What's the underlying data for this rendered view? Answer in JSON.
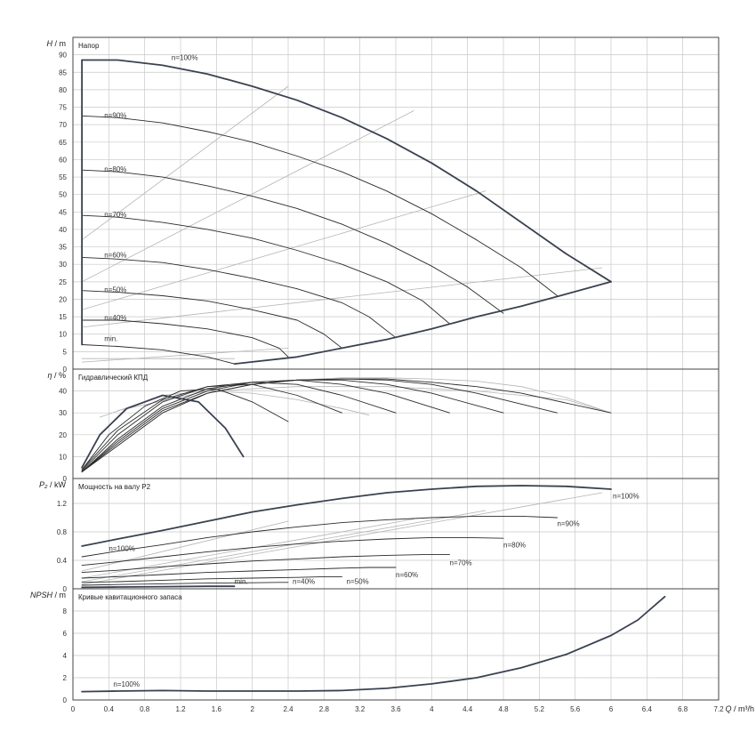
{
  "colors": {
    "dark": "#3a4150",
    "mid": "#2b2b2b",
    "light": "#b4b4b4",
    "grid": "#c8c8c8"
  },
  "chart_data": [
    {
      "type": "line",
      "panel": "head",
      "title": "Напор",
      "ylabel_var": "H",
      "ylabel_unit": "m",
      "ylim": [
        0,
        95
      ],
      "yticks": [
        0,
        5,
        10,
        15,
        20,
        25,
        30,
        35,
        40,
        45,
        50,
        55,
        60,
        65,
        70,
        75,
        80,
        85,
        90
      ],
      "curve_labels": [
        {
          "text": "n=100%",
          "at": [
            1.1,
            88.5
          ]
        },
        {
          "text": "n=90%",
          "at": [
            0.35,
            72
          ]
        },
        {
          "text": "n=80%",
          "at": [
            0.35,
            56.5
          ]
        },
        {
          "text": "n=70%",
          "at": [
            0.35,
            43.5
          ]
        },
        {
          "text": "n=60%",
          "at": [
            0.35,
            32
          ]
        },
        {
          "text": "n=50%",
          "at": [
            0.35,
            22
          ]
        },
        {
          "text": "n=40%",
          "at": [
            0.35,
            14
          ]
        },
        {
          "text": "min.",
          "at": [
            0.35,
            8
          ]
        }
      ],
      "series": [
        {
          "name": "n=100%",
          "style": "dark",
          "x": [
            0.1,
            0.5,
            1.0,
            1.5,
            2.0,
            2.5,
            3.0,
            3.5,
            4.0,
            4.5,
            5.0,
            5.5,
            6.0
          ],
          "y": [
            88.5,
            88.5,
            87,
            84.5,
            81,
            77,
            72,
            66,
            59,
            51,
            42,
            33,
            25
          ]
        },
        {
          "name": "n=90%",
          "style": "mid",
          "x": [
            0.1,
            0.5,
            1.0,
            1.5,
            2.0,
            2.5,
            3.0,
            3.5,
            4.0,
            4.5,
            5.0,
            5.4
          ],
          "y": [
            72.5,
            72,
            70.5,
            68,
            65,
            61,
            56.5,
            51,
            44.5,
            37,
            29,
            21
          ]
        },
        {
          "name": "n=80%",
          "style": "mid",
          "x": [
            0.1,
            0.5,
            1.0,
            1.5,
            2.0,
            2.5,
            3.0,
            3.5,
            4.0,
            4.4,
            4.8
          ],
          "y": [
            57,
            56.5,
            55,
            52.5,
            49.5,
            46,
            41.5,
            36,
            29.5,
            23.5,
            16
          ]
        },
        {
          "name": "n=70%",
          "style": "mid",
          "x": [
            0.1,
            0.5,
            1.0,
            1.5,
            2.0,
            2.5,
            3.0,
            3.5,
            3.9,
            4.2
          ],
          "y": [
            44,
            43.5,
            42,
            40,
            37.5,
            34,
            30,
            25,
            19.5,
            13
          ]
        },
        {
          "name": "n=60%",
          "style": "mid",
          "x": [
            0.1,
            0.5,
            1.0,
            1.5,
            2.0,
            2.5,
            3.0,
            3.3,
            3.6
          ],
          "y": [
            32,
            31.5,
            30.5,
            28.5,
            26,
            23,
            19,
            15,
            9
          ]
        },
        {
          "name": "n=50%",
          "style": "mid",
          "x": [
            0.1,
            0.5,
            1.0,
            1.5,
            2.0,
            2.5,
            2.8,
            3.0
          ],
          "y": [
            22.5,
            22,
            21,
            19.5,
            17,
            14,
            10,
            6
          ]
        },
        {
          "name": "n=40%",
          "style": "mid",
          "x": [
            0.1,
            0.5,
            1.0,
            1.5,
            2.0,
            2.3,
            2.4
          ],
          "y": [
            14,
            14,
            13,
            11.5,
            9,
            6,
            3.5
          ]
        },
        {
          "name": "min.",
          "style": "mid",
          "x": [
            0.1,
            0.5,
            1.0,
            1.5,
            1.8
          ],
          "y": [
            7,
            6.5,
            5.5,
            3.5,
            1.5
          ]
        },
        {
          "name": "",
          "style": "dark",
          "x": [
            0.1,
            0.1
          ],
          "y": [
            7,
            88.5
          ]
        },
        {
          "name": "",
          "style": "dark",
          "x": [
            1.8,
            2.5,
            3.0,
            3.5,
            4.0,
            4.5,
            5.0,
            5.5,
            6.0
          ],
          "y": [
            1.5,
            3.5,
            6,
            8.5,
            11.5,
            15,
            18,
            21.5,
            25
          ]
        },
        {
          "name": "",
          "style": "light",
          "x": [
            0.1,
            2.4
          ],
          "y": [
            37,
            81
          ]
        },
        {
          "name": "",
          "style": "light",
          "x": [
            0.1,
            3.8
          ],
          "y": [
            25,
            74
          ]
        },
        {
          "name": "",
          "style": "light",
          "x": [
            0.1,
            4.6
          ],
          "y": [
            17,
            51
          ]
        },
        {
          "name": "",
          "style": "light",
          "x": [
            0.1,
            5.9
          ],
          "y": [
            12,
            29
          ]
        },
        {
          "name": "",
          "style": "light",
          "x": [
            0.1,
            1.8
          ],
          "y": [
            3,
            3
          ]
        },
        {
          "name": "",
          "style": "light",
          "x": [
            0.1,
            2.4
          ],
          "y": [
            2,
            6
          ]
        }
      ]
    },
    {
      "type": "line",
      "panel": "efficiency",
      "title": "Гидравлический КПД",
      "ylabel_var": "η",
      "ylabel_unit": "%",
      "ylim": [
        0,
        50
      ],
      "yticks": [
        0,
        10,
        20,
        30,
        40
      ],
      "series": [
        {
          "name": "min.",
          "style": "dark",
          "x": [
            0.1,
            0.3,
            0.6,
            1.0,
            1.4,
            1.7,
            1.9
          ],
          "y": [
            5,
            20,
            32,
            38,
            35,
            23,
            10
          ]
        },
        {
          "name": "n=40%",
          "style": "mid",
          "x": [
            0.1,
            0.4,
            0.8,
            1.2,
            1.6,
            2.0,
            2.4
          ],
          "y": [
            4,
            20,
            33,
            40,
            41,
            35,
            26
          ]
        },
        {
          "name": "n=50%",
          "style": "mid",
          "x": [
            0.1,
            0.5,
            1.0,
            1.5,
            2.0,
            2.5,
            3.0
          ],
          "y": [
            4,
            22,
            36,
            42,
            43,
            38,
            30
          ]
        },
        {
          "name": "n=60%",
          "style": "mid",
          "x": [
            0.1,
            0.5,
            1.0,
            1.5,
            2.0,
            2.5,
            3.0,
            3.6
          ],
          "y": [
            3.5,
            20,
            35,
            42,
            44,
            43,
            38,
            30
          ]
        },
        {
          "name": "n=70%",
          "style": "mid",
          "x": [
            0.1,
            0.5,
            1.0,
            1.5,
            2.0,
            2.5,
            3.0,
            3.5,
            4.2
          ],
          "y": [
            3,
            18,
            33,
            41,
            44,
            45,
            43,
            39,
            30
          ]
        },
        {
          "name": "n=80%",
          "style": "mid",
          "x": [
            0.1,
            0.5,
            1.0,
            1.5,
            2.0,
            2.5,
            3.0,
            3.5,
            4.0,
            4.8
          ],
          "y": [
            3,
            17,
            32,
            40,
            44,
            45,
            45,
            43,
            39,
            30
          ]
        },
        {
          "name": "n=90%",
          "style": "mid",
          "x": [
            0.1,
            0.5,
            1.0,
            1.5,
            2.0,
            2.5,
            3.0,
            3.5,
            4.0,
            4.5,
            5.4
          ],
          "y": [
            3,
            16,
            31,
            39,
            43,
            45,
            45.5,
            45,
            43,
            39,
            30
          ]
        },
        {
          "name": "n=100%",
          "style": "mid",
          "x": [
            0.1,
            0.5,
            1.0,
            1.5,
            2.0,
            2.5,
            3.0,
            3.5,
            4.0,
            4.5,
            5.0,
            6.0
          ],
          "y": [
            3,
            15,
            30,
            39,
            43,
            45,
            45.5,
            45.5,
            44,
            42,
            39,
            30
          ]
        },
        {
          "name": "",
          "style": "light",
          "x": [
            0.1,
            0.5,
            1.0,
            1.5,
            2.0,
            2.5,
            3.0,
            3.5,
            4.0,
            4.5,
            5.0,
            5.5,
            6.0
          ],
          "y": [
            3,
            15,
            30,
            39,
            43,
            45,
            46,
            46,
            45.5,
            44.5,
            42,
            37,
            30
          ]
        },
        {
          "name": "",
          "style": "light",
          "x": [
            0.3,
            1.0,
            1.5,
            2.0,
            2.5,
            3.0,
            3.3
          ],
          "y": [
            28,
            38,
            40,
            39,
            36,
            32,
            29
          ]
        },
        {
          "name": "",
          "style": "light",
          "x": [
            0.5,
            1.5,
            2.5,
            3.5,
            4.5,
            5.5,
            6.0
          ],
          "y": [
            31,
            40,
            42,
            42,
            40,
            36,
            30
          ]
        }
      ]
    },
    {
      "type": "line",
      "panel": "power",
      "title": "Мощность на валу P2",
      "ylabel_var": "P₂",
      "ylabel_unit": "kW",
      "ylim": [
        0,
        1.55
      ],
      "yticks": [
        0,
        0.4,
        0.8,
        1.2
      ],
      "ytick_labels": [
        "0",
        "0.4",
        "0.8",
        "1.2"
      ],
      "curve_labels": [
        {
          "text": "n=100%",
          "at": [
            6.02,
            1.27
          ]
        },
        {
          "text": "n=90%",
          "at": [
            5.4,
            0.88
          ]
        },
        {
          "text": "n=80%",
          "at": [
            4.8,
            0.58
          ]
        },
        {
          "text": "n=70%",
          "at": [
            4.2,
            0.33
          ]
        },
        {
          "text": "n=60%",
          "at": [
            3.6,
            0.16
          ]
        },
        {
          "text": "n=50%",
          "at": [
            3.05,
            0.07
          ]
        },
        {
          "text": "n=40%",
          "at": [
            2.45,
            0.07
          ]
        },
        {
          "text": "min.",
          "at": [
            1.8,
            0.07
          ]
        },
        {
          "text": "n=100%",
          "at": [
            0.4,
            0.53
          ]
        }
      ],
      "series": [
        {
          "name": "n=100%",
          "style": "dark",
          "x": [
            0.1,
            0.5,
            1.0,
            1.5,
            2.0,
            2.5,
            3.0,
            3.5,
            4.0,
            4.5,
            5.0,
            5.5,
            6.0
          ],
          "y": [
            0.6,
            0.7,
            0.82,
            0.95,
            1.08,
            1.18,
            1.27,
            1.35,
            1.4,
            1.44,
            1.45,
            1.44,
            1.4
          ]
        },
        {
          "name": "n=90%",
          "style": "mid",
          "x": [
            0.1,
            0.5,
            1.0,
            1.5,
            2.0,
            2.5,
            3.0,
            3.5,
            4.0,
            4.5,
            5.0,
            5.4
          ],
          "y": [
            0.45,
            0.53,
            0.62,
            0.72,
            0.8,
            0.87,
            0.93,
            0.97,
            1.0,
            1.02,
            1.02,
            1.0
          ]
        },
        {
          "name": "n=80%",
          "style": "mid",
          "x": [
            0.1,
            0.5,
            1.0,
            1.5,
            2.0,
            2.5,
            3.0,
            3.5,
            4.0,
            4.4,
            4.8
          ],
          "y": [
            0.33,
            0.38,
            0.45,
            0.52,
            0.58,
            0.63,
            0.67,
            0.7,
            0.72,
            0.72,
            0.71
          ]
        },
        {
          "name": "n=70%",
          "style": "mid",
          "x": [
            0.1,
            0.5,
            1.0,
            1.5,
            2.0,
            2.5,
            3.0,
            3.5,
            3.9,
            4.2
          ],
          "y": [
            0.23,
            0.26,
            0.31,
            0.35,
            0.39,
            0.42,
            0.45,
            0.47,
            0.48,
            0.48
          ]
        },
        {
          "name": "n=60%",
          "style": "mid",
          "x": [
            0.1,
            0.5,
            1.0,
            1.5,
            2.0,
            2.5,
            3.0,
            3.3,
            3.6
          ],
          "y": [
            0.15,
            0.17,
            0.2,
            0.23,
            0.25,
            0.27,
            0.29,
            0.3,
            0.3
          ]
        },
        {
          "name": "n=50%",
          "style": "mid",
          "x": [
            0.1,
            0.5,
            1.0,
            1.5,
            2.0,
            2.5,
            2.8,
            3.0
          ],
          "y": [
            0.09,
            0.1,
            0.12,
            0.14,
            0.15,
            0.16,
            0.17,
            0.17
          ]
        },
        {
          "name": "n=40%",
          "style": "mid",
          "x": [
            0.1,
            0.5,
            1.0,
            1.5,
            2.0,
            2.3,
            2.4
          ],
          "y": [
            0.05,
            0.06,
            0.07,
            0.08,
            0.085,
            0.09,
            0.09
          ]
        },
        {
          "name": "min.",
          "style": "dark",
          "x": [
            0.1,
            0.5,
            1.0,
            1.5,
            1.8
          ],
          "y": [
            0.02,
            0.025,
            0.03,
            0.035,
            0.035
          ]
        },
        {
          "name": "",
          "style": "light",
          "x": [
            0.1,
            2.4
          ],
          "y": [
            0.25,
            0.95
          ]
        },
        {
          "name": "",
          "style": "light",
          "x": [
            0.1,
            3.8
          ],
          "y": [
            0.15,
            0.98
          ]
        },
        {
          "name": "",
          "style": "light",
          "x": [
            0.1,
            4.6
          ],
          "y": [
            0.1,
            1.1
          ]
        },
        {
          "name": "",
          "style": "light",
          "x": [
            0.1,
            5.9
          ],
          "y": [
            0.06,
            1.35
          ]
        }
      ]
    },
    {
      "type": "line",
      "panel": "npsh",
      "title": "Кривые кавитационного запаса",
      "ylabel_var": "NPSH",
      "ylabel_unit": "m",
      "ylim": [
        0,
        10
      ],
      "yticks": [
        0,
        2,
        4,
        6,
        8
      ],
      "curve_labels": [
        {
          "text": "n=100%",
          "at": [
            0.45,
            1.2
          ]
        }
      ],
      "series": [
        {
          "name": "n=100%",
          "style": "dark",
          "x": [
            0.1,
            0.5,
            1.0,
            1.5,
            2.0,
            2.5,
            3.0,
            3.5,
            4.0,
            4.5,
            5.0,
            5.5,
            6.0,
            6.3,
            6.6
          ],
          "y": [
            0.75,
            0.8,
            0.85,
            0.8,
            0.8,
            0.8,
            0.85,
            1.05,
            1.45,
            2.0,
            2.9,
            4.1,
            5.8,
            7.2,
            9.3
          ]
        }
      ]
    }
  ],
  "x_axis": {
    "label_var": "Q",
    "label_unit": "m³/h",
    "xlim": [
      0,
      7.2
    ],
    "ticks": [
      0,
      0.4,
      0.8,
      1.2,
      1.6,
      2,
      2.4,
      2.8,
      3.2,
      3.6,
      4,
      4.4,
      4.8,
      5.2,
      5.6,
      6,
      6.4,
      6.8,
      7.2
    ],
    "tick_labels": [
      "0",
      "0.4",
      "0.8",
      "1.2",
      "1.6",
      "2",
      "2.4",
      "2.8",
      "3.2",
      "3.6",
      "4",
      "4.4",
      "4.8",
      "5.2",
      "5.6",
      "6",
      "6.4",
      "6.8",
      "7.2"
    ]
  }
}
